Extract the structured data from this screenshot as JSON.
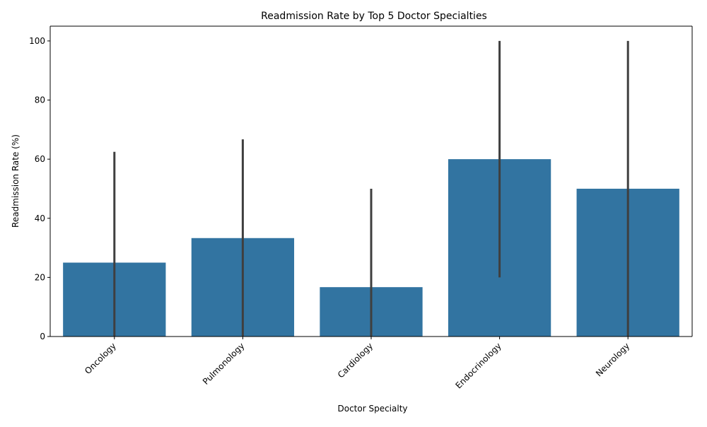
{
  "chart_data": {
    "type": "bar",
    "title": "Readmission Rate by Top 5 Doctor Specialties",
    "xlabel": "Doctor Specialty",
    "ylabel": "Readmission Rate (%)",
    "categories": [
      "Oncology",
      "Pulmonology",
      "Cardiology",
      "Endocrinology",
      "Neurology"
    ],
    "values": [
      25.0,
      33.3,
      16.7,
      60.0,
      50.0
    ],
    "error_bars": [
      {
        "low": 0,
        "high": 62.5
      },
      {
        "low": 0,
        "high": 66.7
      },
      {
        "low": 0,
        "high": 50.0
      },
      {
        "low": 20.0,
        "high": 100.0
      },
      {
        "low": 0,
        "high": 100.0
      }
    ],
    "ylim": [
      0,
      105
    ],
    "yticks": [
      0,
      20,
      40,
      60,
      80,
      100
    ],
    "grid": false,
    "bar_color": "#3274a1",
    "errorbar_color": "#3f3f3f",
    "x_tick_rotation_deg": 45
  }
}
